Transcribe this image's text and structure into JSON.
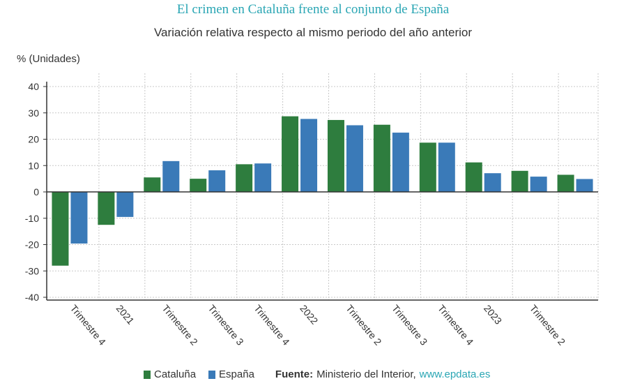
{
  "chart_data": {
    "type": "bar",
    "title": "El crimen en Cataluña frente al conjunto de España",
    "subtitle": "Variación relativa respecto al mismo periodo del año anterior",
    "ylabel": "% (Unidades)",
    "xlabel": "",
    "ylim": [
      -40,
      40
    ],
    "yticks": [
      40,
      30,
      20,
      10,
      0,
      -10,
      -20,
      -30,
      -40
    ],
    "grid": true,
    "legend_position": "bottom",
    "categories": [
      "Trimestre 4",
      "2021",
      "Trimestre 2",
      "Trimestre 3",
      "Trimestre 4",
      "2022",
      "Trimestre 2",
      "Trimestre 3",
      "Trimestre 4",
      "2023",
      "Trimestre 2",
      ""
    ],
    "series": [
      {
        "name": "Cataluña",
        "color": "#2e7d3e",
        "values": [
          -28,
          -12.5,
          5.5,
          5,
          10.5,
          28.7,
          27.3,
          25.5,
          18.7,
          11.2,
          8,
          6.5
        ]
      },
      {
        "name": "España",
        "color": "#3a7ab8",
        "values": [
          -19.6,
          -9.5,
          11.7,
          8.2,
          10.8,
          27.7,
          25.3,
          22.5,
          18.7,
          7.1,
          5.8,
          4.9
        ]
      }
    ]
  },
  "legend": {
    "catalunya": "Cataluña",
    "espana": "España"
  },
  "source": {
    "label": "Fuente:",
    "text": "Ministerio del Interior,",
    "link": "www.epdata.es"
  }
}
